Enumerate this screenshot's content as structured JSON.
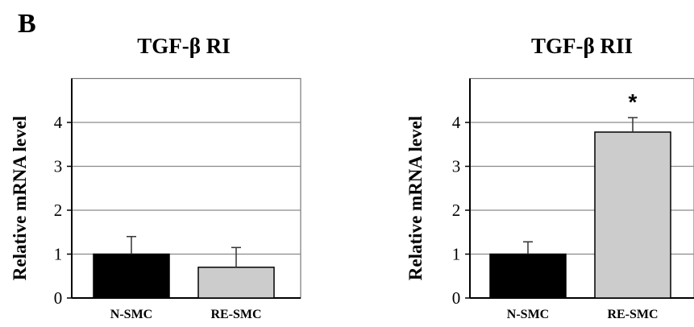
{
  "panel_label": "B",
  "chart_data": [
    {
      "type": "bar",
      "title": "TGF-β RI",
      "xlabel": "",
      "ylabel": "Relative mRNA level",
      "ylim": [
        0,
        5
      ],
      "yticks": [
        0,
        1,
        2,
        3,
        4
      ],
      "grid": true,
      "categories": [
        "N-SMC",
        "RE-SMC"
      ],
      "values": [
        1.0,
        0.7
      ],
      "errors": [
        0.4,
        0.45
      ],
      "bar_colors": [
        "#000000",
        "#cccccc"
      ],
      "annotations": []
    },
    {
      "type": "bar",
      "title": "TGF-β RII",
      "xlabel": "",
      "ylabel": "Relative mRNA level",
      "ylim": [
        0,
        5
      ],
      "yticks": [
        0,
        1,
        2,
        3,
        4
      ],
      "grid": true,
      "categories": [
        "N-SMC",
        "RE-SMC"
      ],
      "values": [
        1.0,
        3.78
      ],
      "errors": [
        0.28,
        0.33
      ],
      "bar_colors": [
        "#000000",
        "#cccccc"
      ],
      "annotations": [
        {
          "category": "RE-SMC",
          "text": "*"
        }
      ]
    }
  ]
}
